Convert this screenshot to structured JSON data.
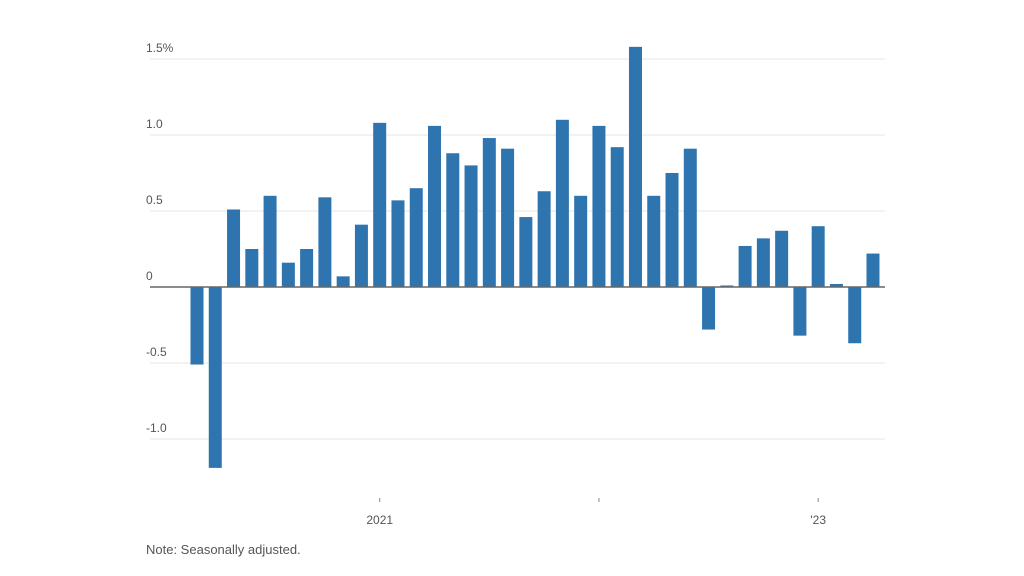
{
  "chart_data": {
    "type": "bar",
    "title": "",
    "xlabel": "",
    "ylabel": "",
    "y_unit": "%",
    "ylim": [
      -1.3,
      1.6
    ],
    "yticks": [
      {
        "value": 1.5,
        "label": "1.5%"
      },
      {
        "value": 1.0,
        "label": "1.0"
      },
      {
        "value": 0.5,
        "label": "0.5"
      },
      {
        "value": 0,
        "label": "0"
      },
      {
        "value": -0.5,
        "label": "-0.5"
      },
      {
        "value": -1.0,
        "label": "-1.0"
      }
    ],
    "xticks": [
      {
        "x": "2021-01",
        "label": "2021"
      },
      {
        "x": "2022-01",
        "label": ""
      },
      {
        "x": "2023-01",
        "label": "'23"
      }
    ],
    "grid": true,
    "bar_color": "#2e75b0",
    "x": [
      "2020-03",
      "2020-04",
      "2020-05",
      "2020-06",
      "2020-07",
      "2020-08",
      "2020-09",
      "2020-10",
      "2020-11",
      "2020-12",
      "2021-01",
      "2021-02",
      "2021-03",
      "2021-04",
      "2021-05",
      "2021-06",
      "2021-07",
      "2021-08",
      "2021-09",
      "2021-10",
      "2021-11",
      "2021-12",
      "2022-01",
      "2022-02",
      "2022-03",
      "2022-04",
      "2022-05",
      "2022-06",
      "2022-07",
      "2022-08",
      "2022-09",
      "2022-10",
      "2022-11",
      "2022-12",
      "2023-01",
      "2023-02",
      "2023-03",
      "2023-04"
    ],
    "values": [
      -0.51,
      -1.19,
      0.51,
      0.25,
      0.6,
      0.16,
      0.25,
      0.59,
      0.07,
      0.41,
      1.08,
      0.57,
      0.65,
      1.06,
      0.88,
      0.8,
      0.98,
      0.91,
      0.46,
      0.63,
      1.1,
      0.6,
      1.06,
      0.92,
      1.58,
      0.6,
      0.75,
      0.91,
      -0.28,
      0.01,
      0.27,
      0.32,
      0.37,
      -0.32,
      0.4,
      0.02,
      -0.37,
      0.22
    ]
  },
  "note": "Note: Seasonally adjusted."
}
